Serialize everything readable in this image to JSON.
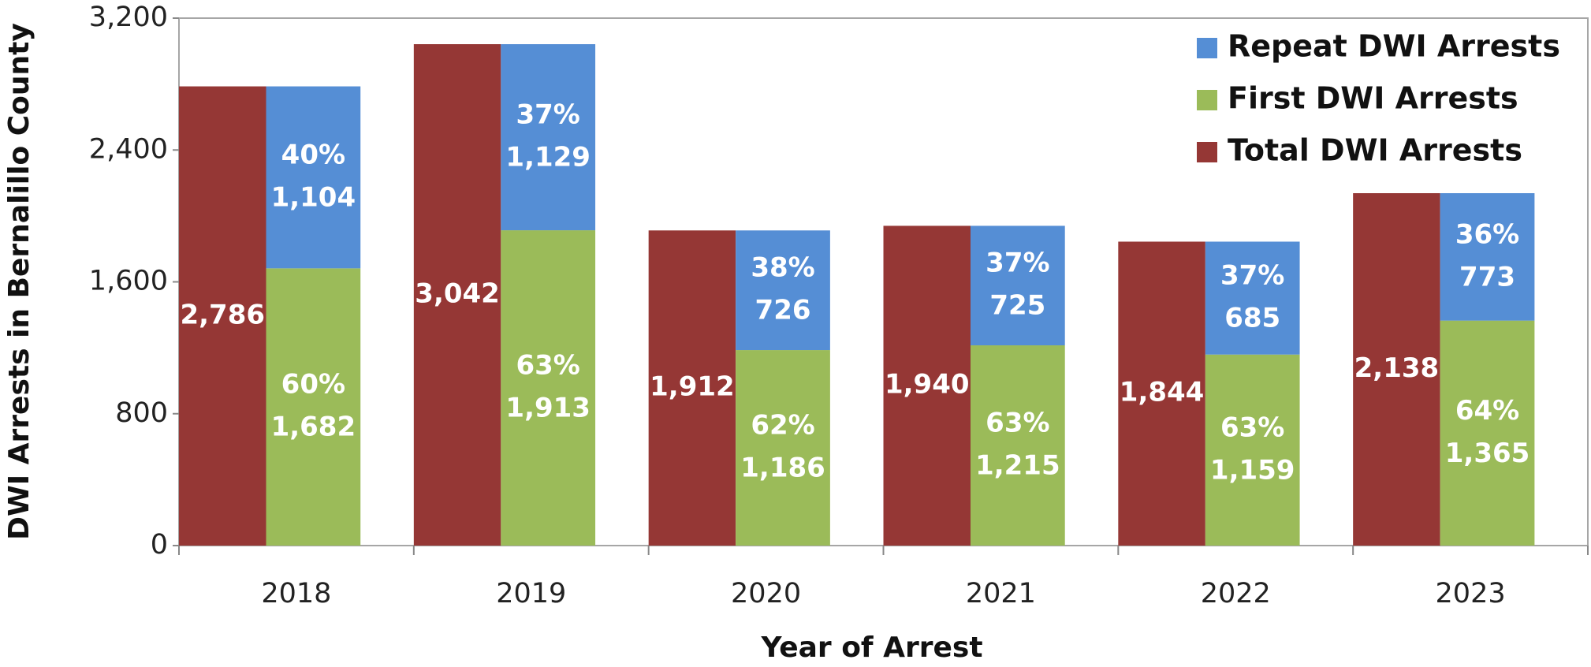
{
  "chart_data": {
    "type": "bar",
    "x_label": "Year of Arrest",
    "y_label": "DWI Arrests in Bernalillo County",
    "categories": [
      "2018",
      "2019",
      "2020",
      "2021",
      "2022",
      "2023"
    ],
    "series": [
      {
        "name": "Total DWI Arrests",
        "color": "#953735",
        "values": [
          2786,
          3042,
          1912,
          1940,
          1844,
          2138
        ],
        "value_labels": [
          "2,786",
          "3,042",
          "1,912",
          "1,940",
          "1,844",
          "2,138"
        ]
      },
      {
        "name": "First DWI Arrests",
        "color": "#9bbb59",
        "stack": "split",
        "values": [
          1682,
          1913,
          1186,
          1215,
          1159,
          1365
        ],
        "value_labels": [
          "1,682",
          "1,913",
          "1,186",
          "1,215",
          "1,159",
          "1,365"
        ],
        "percent_labels": [
          "60%",
          "63%",
          "62%",
          "63%",
          "63%",
          "64%"
        ]
      },
      {
        "name": "Repeat DWI Arrests",
        "color": "#558ed5",
        "stack": "split",
        "values": [
          1104,
          1129,
          726,
          725,
          685,
          773
        ],
        "value_labels": [
          "1,104",
          "1,129",
          "726",
          "725",
          "685",
          "773"
        ],
        "percent_labels": [
          "40%",
          "37%",
          "38%",
          "37%",
          "37%",
          "36%"
        ]
      }
    ],
    "ylim": [
      0,
      3200
    ],
    "yticks": [
      0,
      800,
      {
        "value": 1600,
        "label": "1,600"
      },
      {
        "value": 2400,
        "label": "2,400"
      },
      {
        "value": 3200,
        "label": "3,200"
      }
    ],
    "legend": "upper right"
  }
}
